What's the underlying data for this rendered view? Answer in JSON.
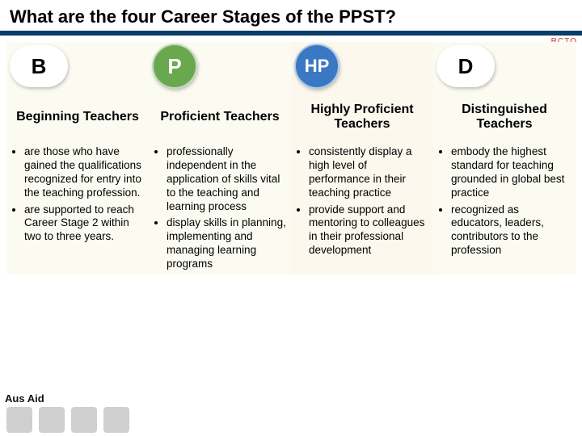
{
  "title": "What are the four Career Stages of the PPST?",
  "corner_tag": "RCTQ",
  "stages": [
    {
      "letter": "B",
      "badge_bg": "#ffffff",
      "badge_fg": "#000000",
      "badge_shape": "white",
      "heading": "Beginning Teachers",
      "col_bg": "#fbfbf2",
      "bullets": [
        "are those who have gained the qualifications recognized for entry into the teaching profession.",
        "are supported to reach Career Stage 2 within two to three years."
      ]
    },
    {
      "letter": "P",
      "badge_bg": "#6aa84f",
      "badge_fg": "#ffffff",
      "badge_shape": "round",
      "heading": "Proficient Teachers",
      "col_bg": "#fbfbf2",
      "bullets": [
        "professionally independent in the application of skills vital to the teaching and learning process",
        "display skills in planning, implementing and managing learning programs"
      ]
    },
    {
      "letter": "HP",
      "badge_bg": "#3b78c4",
      "badge_fg": "#ffffff",
      "badge_shape": "round",
      "heading": "Highly Proficient Teachers",
      "col_bg": "#fdf8ee",
      "bullets": [
        "consistently display a high level of performance in their teaching practice",
        "provide support and mentoring to colleagues in their professional development"
      ]
    },
    {
      "letter": "D",
      "badge_bg": "#ffffff",
      "badge_fg": "#000000",
      "badge_shape": "white",
      "heading": "Distinguished Teachers",
      "col_bg": "#fbfbf2",
      "bullets": [
        "embody the highest standard for teaching grounded in global best practice",
        "recognized as educators, leaders, contributors to the profession"
      ]
    }
  ],
  "footer_brand": "Aus\nAid"
}
